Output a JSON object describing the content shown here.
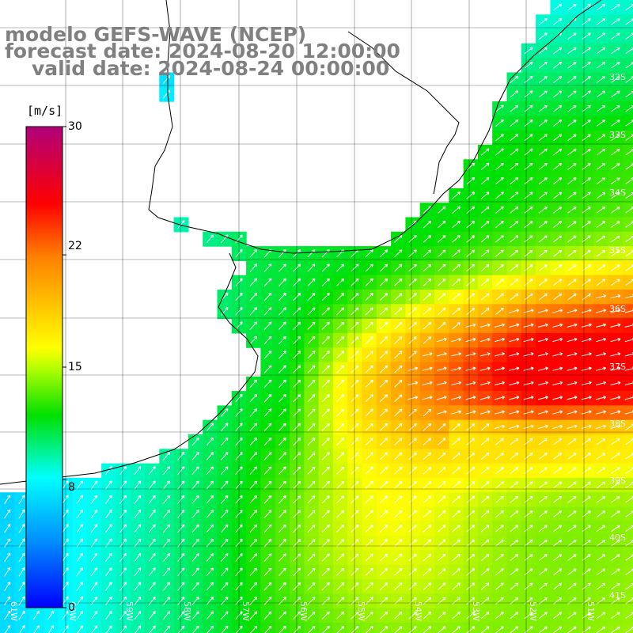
{
  "title": {
    "line1": "modelo GEFS-WAVE (NCEP)",
    "line2": "forecast date: 2024-08-20 12:00:00",
    "line3": "valid date: 2024-08-24 00:00:00"
  },
  "colorbar": {
    "unit": "[m/s]",
    "labels": [
      "30",
      "22",
      "15",
      "8",
      "0"
    ],
    "values": [
      30,
      22,
      15,
      8,
      0
    ],
    "range": [
      0,
      30
    ],
    "colors": [
      "#0000ff",
      "#00c8ff",
      "#00ffff",
      "#00e000",
      "#ffff00",
      "#ff9900",
      "#ff0000",
      "#e0006e",
      "#b0007a"
    ]
  },
  "grid": {
    "lat_labels": [
      "32S",
      "33S",
      "34S",
      "35S",
      "36S",
      "37S",
      "38S",
      "39S",
      "40S",
      "41S"
    ],
    "lon_labels": [
      "61W",
      "60W",
      "59W",
      "58W",
      "57W",
      "56W",
      "55W",
      "54W",
      "53W",
      "52W",
      "51W"
    ]
  },
  "field": {
    "variable": "wind speed",
    "units": "m/s",
    "arrow_color": "#ffffff",
    "land_color": "#ffffff",
    "coast_color": "#000000",
    "grid_color": "#000000"
  }
}
